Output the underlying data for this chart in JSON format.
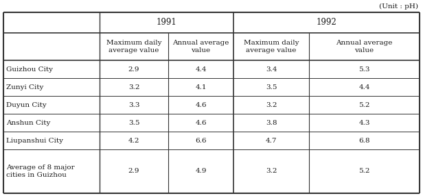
{
  "unit_label": "(Unit : pH)",
  "year_headers": [
    "1991",
    "1992"
  ],
  "col_headers": [
    "Maximum daily\naverage value",
    "Annual average\nvalue",
    "Maximum daily\naverage value",
    "Annual average\nvalue"
  ],
  "row_labels": [
    "Guizhou City",
    "Zunyi City",
    "Duyun City",
    "Anshun City",
    "Liupanshui City",
    "Average of 8 major\ncities in Guizhou"
  ],
  "data": [
    [
      "2.9",
      "4.4",
      "3.4",
      "5.3"
    ],
    [
      "3.2",
      "4.1",
      "3.5",
      "4.4"
    ],
    [
      "3.3",
      "4.6",
      "3.2",
      "5.2"
    ],
    [
      "3.5",
      "4.6",
      "3.8",
      "4.3"
    ],
    [
      "4.2",
      "6.6",
      "4.7",
      "6.8"
    ],
    [
      "2.9",
      "4.9",
      "3.2",
      "5.2"
    ]
  ],
  "bg_color": "#ffffff",
  "text_color": "#1a1a1a",
  "line_color": "#333333",
  "font_size": 7.5
}
